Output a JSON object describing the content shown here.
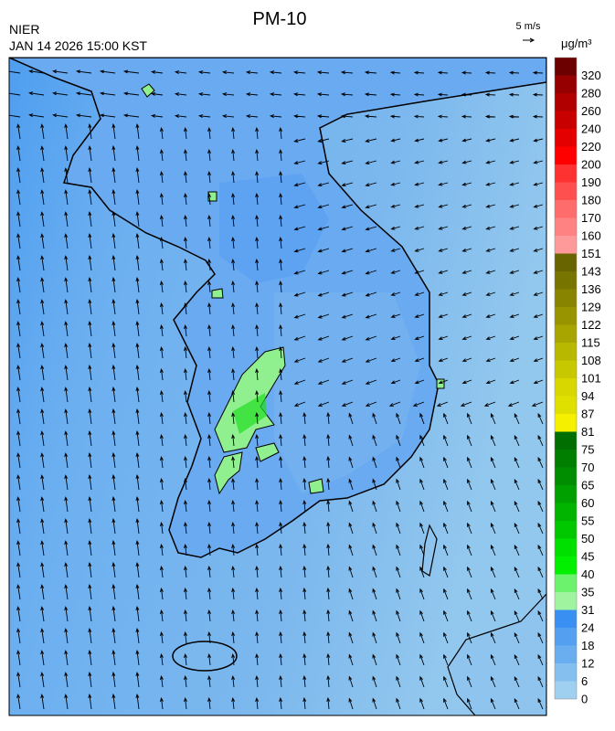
{
  "header": {
    "title": "PM-10",
    "agency": "NIER",
    "datetime": "JAN 14 2026 15:00 KST",
    "wind_scale": "5 m/s",
    "unit": "μg/m³"
  },
  "colorbar": {
    "labels": [
      0,
      6,
      12,
      18,
      24,
      31,
      35,
      40,
      45,
      50,
      55,
      60,
      65,
      70,
      75,
      81,
      87,
      94,
      101,
      108,
      115,
      122,
      129,
      136,
      143,
      151,
      160,
      170,
      180,
      190,
      200,
      220,
      240,
      260,
      280,
      320
    ],
    "colors": [
      "#9fd0ef",
      "#84bff0",
      "#6aaef0",
      "#559ff0",
      "#3a8ff2",
      "#a0f4a0",
      "#6cf26c",
      "#00f000",
      "#00e000",
      "#00c800",
      "#00b400",
      "#00a000",
      "#008e00",
      "#007e00",
      "#006e00",
      "#f4f000",
      "#e0e000",
      "#d8d800",
      "#c8c800",
      "#b8b800",
      "#a8a400",
      "#989400",
      "#888400",
      "#787400",
      "#686400",
      "#ff9a9a",
      "#ff8282",
      "#ff6c6c",
      "#ff5050",
      "#ff3232",
      "#ff0000",
      "#e40000",
      "#c80000",
      "#b00000",
      "#960000",
      "#6c0000"
    ]
  }
}
